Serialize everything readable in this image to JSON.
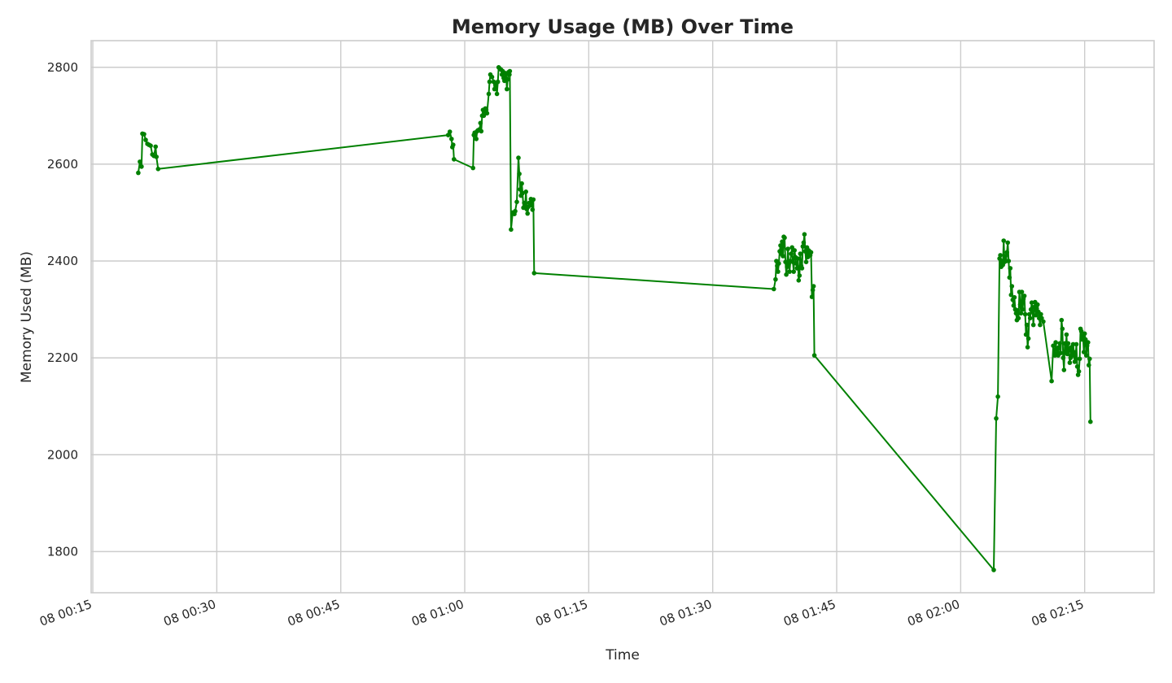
{
  "chart_data": {
    "type": "line",
    "title": "Memory Usage (MB) Over Time",
    "xlabel": "Time",
    "ylabel": "Memory Used (MB)",
    "ylim": [
      1715,
      2855
    ],
    "yticks": [
      1800,
      2000,
      2200,
      2400,
      2600,
      2800
    ],
    "xlim_minutes": [
      14.8,
      143.4
    ],
    "xticks": [
      {
        "label": "08 00:15",
        "minutes": 15
      },
      {
        "label": "08 00:30",
        "minutes": 30
      },
      {
        "label": "08 00:45",
        "minutes": 45
      },
      {
        "label": "08 01:00",
        "minutes": 60
      },
      {
        "label": "08 01:15",
        "minutes": 75
      },
      {
        "label": "08 01:30",
        "minutes": 90
      },
      {
        "label": "08 01:45",
        "minutes": 105
      },
      {
        "label": "08 02:00",
        "minutes": 120
      },
      {
        "label": "08 02:15",
        "minutes": 135
      }
    ],
    "grid": true,
    "line_color": "#008000",
    "marker": "circle",
    "series": [
      {
        "name": "",
        "points": [
          [
            20.5,
            2582
          ],
          [
            20.7,
            2605
          ],
          [
            20.9,
            2595
          ],
          [
            21.0,
            2663
          ],
          [
            21.2,
            2662
          ],
          [
            21.4,
            2650
          ],
          [
            21.6,
            2642
          ],
          [
            21.8,
            2640
          ],
          [
            22.0,
            2638
          ],
          [
            22.2,
            2620
          ],
          [
            22.4,
            2617
          ],
          [
            22.6,
            2636
          ],
          [
            22.7,
            2615
          ],
          [
            22.9,
            2590
          ],
          [
            58.0,
            2660
          ],
          [
            58.2,
            2667
          ],
          [
            58.4,
            2652
          ],
          [
            58.5,
            2635
          ],
          [
            58.6,
            2640
          ],
          [
            58.7,
            2610
          ],
          [
            61.0,
            2592
          ],
          [
            61.1,
            2660
          ],
          [
            61.2,
            2665
          ],
          [
            61.4,
            2652
          ],
          [
            61.5,
            2668
          ],
          [
            61.6,
            2670
          ],
          [
            61.8,
            2672
          ],
          [
            61.9,
            2685
          ],
          [
            62.0,
            2668
          ],
          [
            62.1,
            2700
          ],
          [
            62.2,
            2712
          ],
          [
            62.3,
            2700
          ],
          [
            62.4,
            2710
          ],
          [
            62.5,
            2715
          ],
          [
            62.6,
            2712
          ],
          [
            62.7,
            2705
          ],
          [
            62.9,
            2745
          ],
          [
            63.0,
            2770
          ],
          [
            63.1,
            2785
          ],
          [
            63.3,
            2780
          ],
          [
            63.5,
            2770
          ],
          [
            63.6,
            2755
          ],
          [
            63.8,
            2765
          ],
          [
            63.9,
            2745
          ],
          [
            64.0,
            2770
          ],
          [
            64.1,
            2800
          ],
          [
            64.2,
            2798
          ],
          [
            64.4,
            2795
          ],
          [
            64.5,
            2785
          ],
          [
            64.6,
            2792
          ],
          [
            64.7,
            2778
          ],
          [
            64.8,
            2772
          ],
          [
            64.9,
            2788
          ],
          [
            65.0,
            2786
          ],
          [
            65.1,
            2755
          ],
          [
            65.2,
            2775
          ],
          [
            65.3,
            2790
          ],
          [
            65.4,
            2785
          ],
          [
            65.45,
            2792
          ],
          [
            65.6,
            2465
          ],
          [
            65.8,
            2500
          ],
          [
            66.0,
            2497
          ],
          [
            66.1,
            2503
          ],
          [
            66.3,
            2522
          ],
          [
            66.5,
            2613
          ],
          [
            66.6,
            2580
          ],
          [
            66.7,
            2548
          ],
          [
            66.8,
            2535
          ],
          [
            66.9,
            2560
          ],
          [
            67.0,
            2540
          ],
          [
            67.1,
            2510
          ],
          [
            67.2,
            2520
          ],
          [
            67.3,
            2512
          ],
          [
            67.4,
            2543
          ],
          [
            67.5,
            2507
          ],
          [
            67.6,
            2498
          ],
          [
            67.7,
            2512
          ],
          [
            67.8,
            2520
          ],
          [
            67.9,
            2515
          ],
          [
            68.0,
            2528
          ],
          [
            68.1,
            2520
          ],
          [
            68.2,
            2506
          ],
          [
            68.3,
            2527
          ],
          [
            68.4,
            2375
          ],
          [
            97.4,
            2342
          ],
          [
            97.6,
            2362
          ],
          [
            97.7,
            2400
          ],
          [
            97.8,
            2390
          ],
          [
            97.9,
            2378
          ],
          [
            98.0,
            2395
          ],
          [
            98.1,
            2420
          ],
          [
            98.2,
            2432
          ],
          [
            98.3,
            2415
          ],
          [
            98.4,
            2440
          ],
          [
            98.5,
            2410
          ],
          [
            98.6,
            2450
          ],
          [
            98.7,
            2448
          ],
          [
            98.8,
            2398
          ],
          [
            98.9,
            2372
          ],
          [
            99.0,
            2388
          ],
          [
            99.1,
            2425
          ],
          [
            99.2,
            2395
          ],
          [
            99.3,
            2378
          ],
          [
            99.4,
            2400
          ],
          [
            99.5,
            2415
          ],
          [
            99.6,
            2428
          ],
          [
            99.7,
            2398
          ],
          [
            99.8,
            2378
          ],
          [
            99.9,
            2422
          ],
          [
            100.0,
            2408
          ],
          [
            100.1,
            2395
          ],
          [
            100.2,
            2385
          ],
          [
            100.3,
            2405
          ],
          [
            100.4,
            2360
          ],
          [
            100.5,
            2370
          ],
          [
            100.6,
            2415
          ],
          [
            100.7,
            2390
          ],
          [
            100.8,
            2385
          ],
          [
            100.9,
            2430
          ],
          [
            101.0,
            2438
          ],
          [
            101.1,
            2455
          ],
          [
            101.2,
            2420
          ],
          [
            101.3,
            2398
          ],
          [
            101.4,
            2428
          ],
          [
            101.5,
            2408
          ],
          [
            101.6,
            2422
          ],
          [
            101.7,
            2420
          ],
          [
            101.8,
            2412
          ],
          [
            101.9,
            2418
          ],
          [
            102.0,
            2326
          ],
          [
            102.1,
            2340
          ],
          [
            102.2,
            2348
          ],
          [
            102.3,
            2205
          ],
          [
            124.0,
            1762
          ],
          [
            124.3,
            2075
          ],
          [
            124.5,
            2120
          ],
          [
            124.7,
            2405
          ],
          [
            124.8,
            2412
          ],
          [
            124.9,
            2388
          ],
          [
            125.0,
            2400
          ],
          [
            125.1,
            2392
          ],
          [
            125.2,
            2442
          ],
          [
            125.3,
            2398
          ],
          [
            125.4,
            2410
          ],
          [
            125.5,
            2400
          ],
          [
            125.6,
            2418
          ],
          [
            125.7,
            2438
          ],
          [
            125.8,
            2400
          ],
          [
            125.9,
            2366
          ],
          [
            126.0,
            2385
          ],
          [
            126.1,
            2330
          ],
          [
            126.2,
            2348
          ],
          [
            126.3,
            2320
          ],
          [
            126.4,
            2308
          ],
          [
            126.5,
            2325
          ],
          [
            126.6,
            2300
          ],
          [
            126.7,
            2292
          ],
          [
            126.8,
            2278
          ],
          [
            126.9,
            2298
          ],
          [
            127.0,
            2282
          ],
          [
            127.1,
            2336
          ],
          [
            127.2,
            2310
          ],
          [
            127.3,
            2292
          ],
          [
            127.4,
            2336
          ],
          [
            127.5,
            2300
          ],
          [
            127.6,
            2322
          ],
          [
            127.7,
            2328
          ],
          [
            127.8,
            2290
          ],
          [
            127.9,
            2248
          ],
          [
            128.0,
            2268
          ],
          [
            128.1,
            2222
          ],
          [
            128.2,
            2240
          ],
          [
            128.3,
            2290
          ],
          [
            128.4,
            2282
          ],
          [
            128.5,
            2300
          ],
          [
            128.6,
            2314
          ],
          [
            128.7,
            2295
          ],
          [
            128.8,
            2268
          ],
          [
            128.9,
            2305
          ],
          [
            129.0,
            2315
          ],
          [
            129.1,
            2288
          ],
          [
            129.2,
            2302
          ],
          [
            129.3,
            2310
          ],
          [
            129.4,
            2295
          ],
          [
            129.5,
            2282
          ],
          [
            129.6,
            2268
          ],
          [
            129.7,
            2290
          ],
          [
            129.8,
            2282
          ],
          [
            130.0,
            2275
          ],
          [
            131.0,
            2152
          ],
          [
            131.2,
            2225
          ],
          [
            131.4,
            2205
          ],
          [
            131.5,
            2232
          ],
          [
            131.6,
            2218
          ],
          [
            131.7,
            2210
          ],
          [
            131.8,
            2205
          ],
          [
            131.9,
            2222
          ],
          [
            132.0,
            2230
          ],
          [
            132.1,
            2210
          ],
          [
            132.2,
            2278
          ],
          [
            132.3,
            2260
          ],
          [
            132.4,
            2200
          ],
          [
            132.5,
            2175
          ],
          [
            132.6,
            2230
          ],
          [
            132.7,
            2212
          ],
          [
            132.8,
            2248
          ],
          [
            132.9,
            2208
          ],
          [
            133.0,
            2230
          ],
          [
            133.1,
            2215
          ],
          [
            133.2,
            2190
          ],
          [
            133.3,
            2200
          ],
          [
            133.4,
            2222
          ],
          [
            133.5,
            2205
          ],
          [
            133.6,
            2228
          ],
          [
            133.7,
            2212
          ],
          [
            133.8,
            2192
          ],
          [
            133.9,
            2200
          ],
          [
            134.0,
            2228
          ],
          [
            134.1,
            2182
          ],
          [
            134.2,
            2165
          ],
          [
            134.3,
            2172
          ],
          [
            134.4,
            2198
          ],
          [
            134.5,
            2260
          ],
          [
            134.6,
            2255
          ],
          [
            134.7,
            2238
          ],
          [
            134.8,
            2245
          ],
          [
            134.9,
            2212
          ],
          [
            135.0,
            2250
          ],
          [
            135.1,
            2238
          ],
          [
            135.2,
            2205
          ],
          [
            135.3,
            2225
          ],
          [
            135.4,
            2232
          ],
          [
            135.5,
            2185
          ],
          [
            135.6,
            2198
          ],
          [
            135.7,
            2068
          ]
        ]
      }
    ]
  }
}
